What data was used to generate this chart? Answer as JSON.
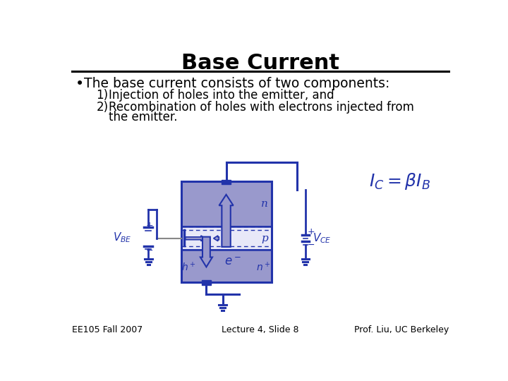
{
  "title": "Base Current",
  "title_fontsize": 22,
  "title_fontweight": "bold",
  "bullet": "The base current consists of two components:",
  "bullet_fontsize": 13.5,
  "item1": "Injection of holes into the emitter, and",
  "item2_line1": "Recombination of holes with electrons injected from",
  "item2_line2": "the emitter.",
  "item_fontsize": 12,
  "footer_left": "EE105 Fall 2007",
  "footer_center": "Lecture 4, Slide 8",
  "footer_right": "Prof. Liu, UC Berkeley",
  "footer_fontsize": 9,
  "slide_color": "#ffffff",
  "text_color": "#000000",
  "blue_color": "#2222aa",
  "diagram_color": "#2233aa",
  "diagram_fill": "#9999cc",
  "diagram_fill2": "#aaaadd"
}
